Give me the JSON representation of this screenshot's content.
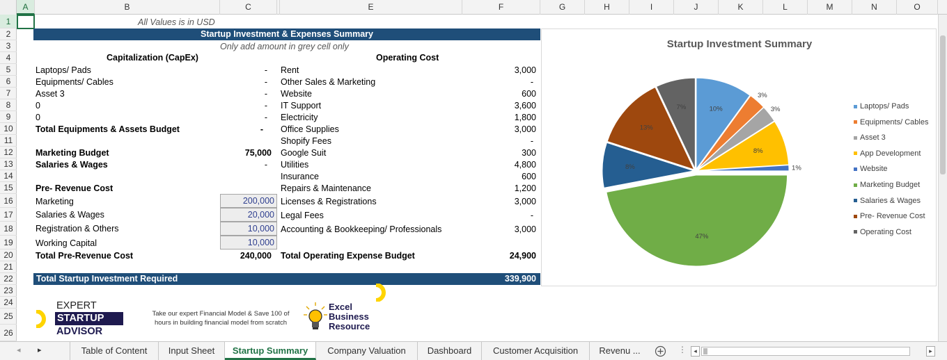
{
  "columns": [
    "A",
    "B",
    "C",
    "",
    "E",
    "F",
    "G",
    "H",
    "I",
    "J",
    "K",
    "L",
    "M",
    "N",
    "O"
  ],
  "rows": [
    "1",
    "2",
    "3",
    "4",
    "5",
    "6",
    "7",
    "8",
    "9",
    "10",
    "11",
    "12",
    "13",
    "14",
    "15",
    "16",
    "17",
    "18",
    "19",
    "20",
    "21",
    "22",
    "23",
    "24",
    "25",
    "26"
  ],
  "note": "All Values is in USD",
  "title": "Startup Investment & Expenses Summary",
  "subtitle": "Only add amount in grey cell only",
  "capex": {
    "header": "Capitalization (CapEx)",
    "items": [
      {
        "label": "Laptops/ Pads",
        "value": "-"
      },
      {
        "label": "Equipments/ Cables",
        "value": "-"
      },
      {
        "label": "Asset 3",
        "value": "-"
      },
      {
        "label": "0",
        "value": "-"
      },
      {
        "label": "0",
        "value": "-"
      }
    ],
    "total_label": "Total Equipments & Assets Budget",
    "total_value": "-",
    "marketing_label": "Marketing Budget",
    "marketing_value": "75,000",
    "salaries_label": "Salaries & Wages",
    "salaries_value": "-",
    "prerev_header": "Pre- Revenue Cost",
    "prerev_items": [
      {
        "label": "Marketing",
        "value": "200,000"
      },
      {
        "label": "Salaries & Wages",
        "value": "20,000"
      },
      {
        "label": "Registration & Others",
        "value": "10,000"
      },
      {
        "label": "Working Capital",
        "value": "10,000"
      }
    ],
    "prerev_total_label": "Total Pre-Revenue Cost",
    "prerev_total_value": "240,000"
  },
  "opex": {
    "header": "Operating Cost",
    "items": [
      {
        "label": "Rent",
        "value": "3,000"
      },
      {
        "label": "Other Sales & Marketing",
        "value": "-"
      },
      {
        "label": "Website",
        "value": "600"
      },
      {
        "label": "IT Support",
        "value": "3,600"
      },
      {
        "label": "Electricity",
        "value": "1,800"
      },
      {
        "label": "Office Supplies",
        "value": "3,000"
      },
      {
        "label": "Shopify Fees",
        "value": "-"
      },
      {
        "label": "Google Suit",
        "value": "300"
      },
      {
        "label": "Utilities",
        "value": "4,800"
      },
      {
        "label": "Insurance",
        "value": "600"
      },
      {
        "label": "Repairs & Maintenance",
        "value": "1,200"
      },
      {
        "label": "Licenses & Registrations",
        "value": "3,000"
      },
      {
        "label": "Legal Fees",
        "value": "-"
      },
      {
        "label": "Accounting & Bookkeeping/ Professionals",
        "value": "3,000"
      }
    ],
    "total_label": "Total Operating Expense Budget",
    "total_value": "24,900"
  },
  "grand_total_label": "Total Startup Investment Required",
  "grand_total_value": "339,900",
  "chart_data": {
    "type": "pie",
    "title": "Startup Investment Summary",
    "categories": [
      "Laptops/ Pads",
      "Equipments/ Cables",
      "Asset 3",
      "App Development",
      "Website",
      "Marketing Budget",
      "Salaries & Wages",
      "Pre- Revenue Cost",
      "Operating Cost"
    ],
    "values": [
      10,
      3,
      3,
      8,
      1,
      47,
      8,
      13,
      7
    ],
    "labels": [
      "10%",
      "3%",
      "3%",
      "8%",
      "1%",
      "47%",
      "8%",
      "13%",
      "7%"
    ],
    "colors": [
      "#5b9bd5",
      "#ed7d31",
      "#a5a5a5",
      "#ffc000",
      "#4472c4",
      "#70ad47",
      "#255e91",
      "#9e480e",
      "#636363"
    ],
    "legend": "right"
  },
  "promo": {
    "logo_line1": "EXPERT",
    "logo_line2": "STARTUP",
    "logo_line3": "ADVISOR",
    "text": "Take our expert Financial Model & Save 100 of hours in building financial model from scratch",
    "brand_line1": "Excel",
    "brand_line2": "Business",
    "brand_line3": "Resource"
  },
  "tabs": [
    "Table of Content",
    "Input Sheet",
    "Startup Summary",
    "Company Valuation",
    "Dashboard",
    "Customer Acquisition",
    "Revenu ..."
  ],
  "active_tab": "Startup Summary"
}
